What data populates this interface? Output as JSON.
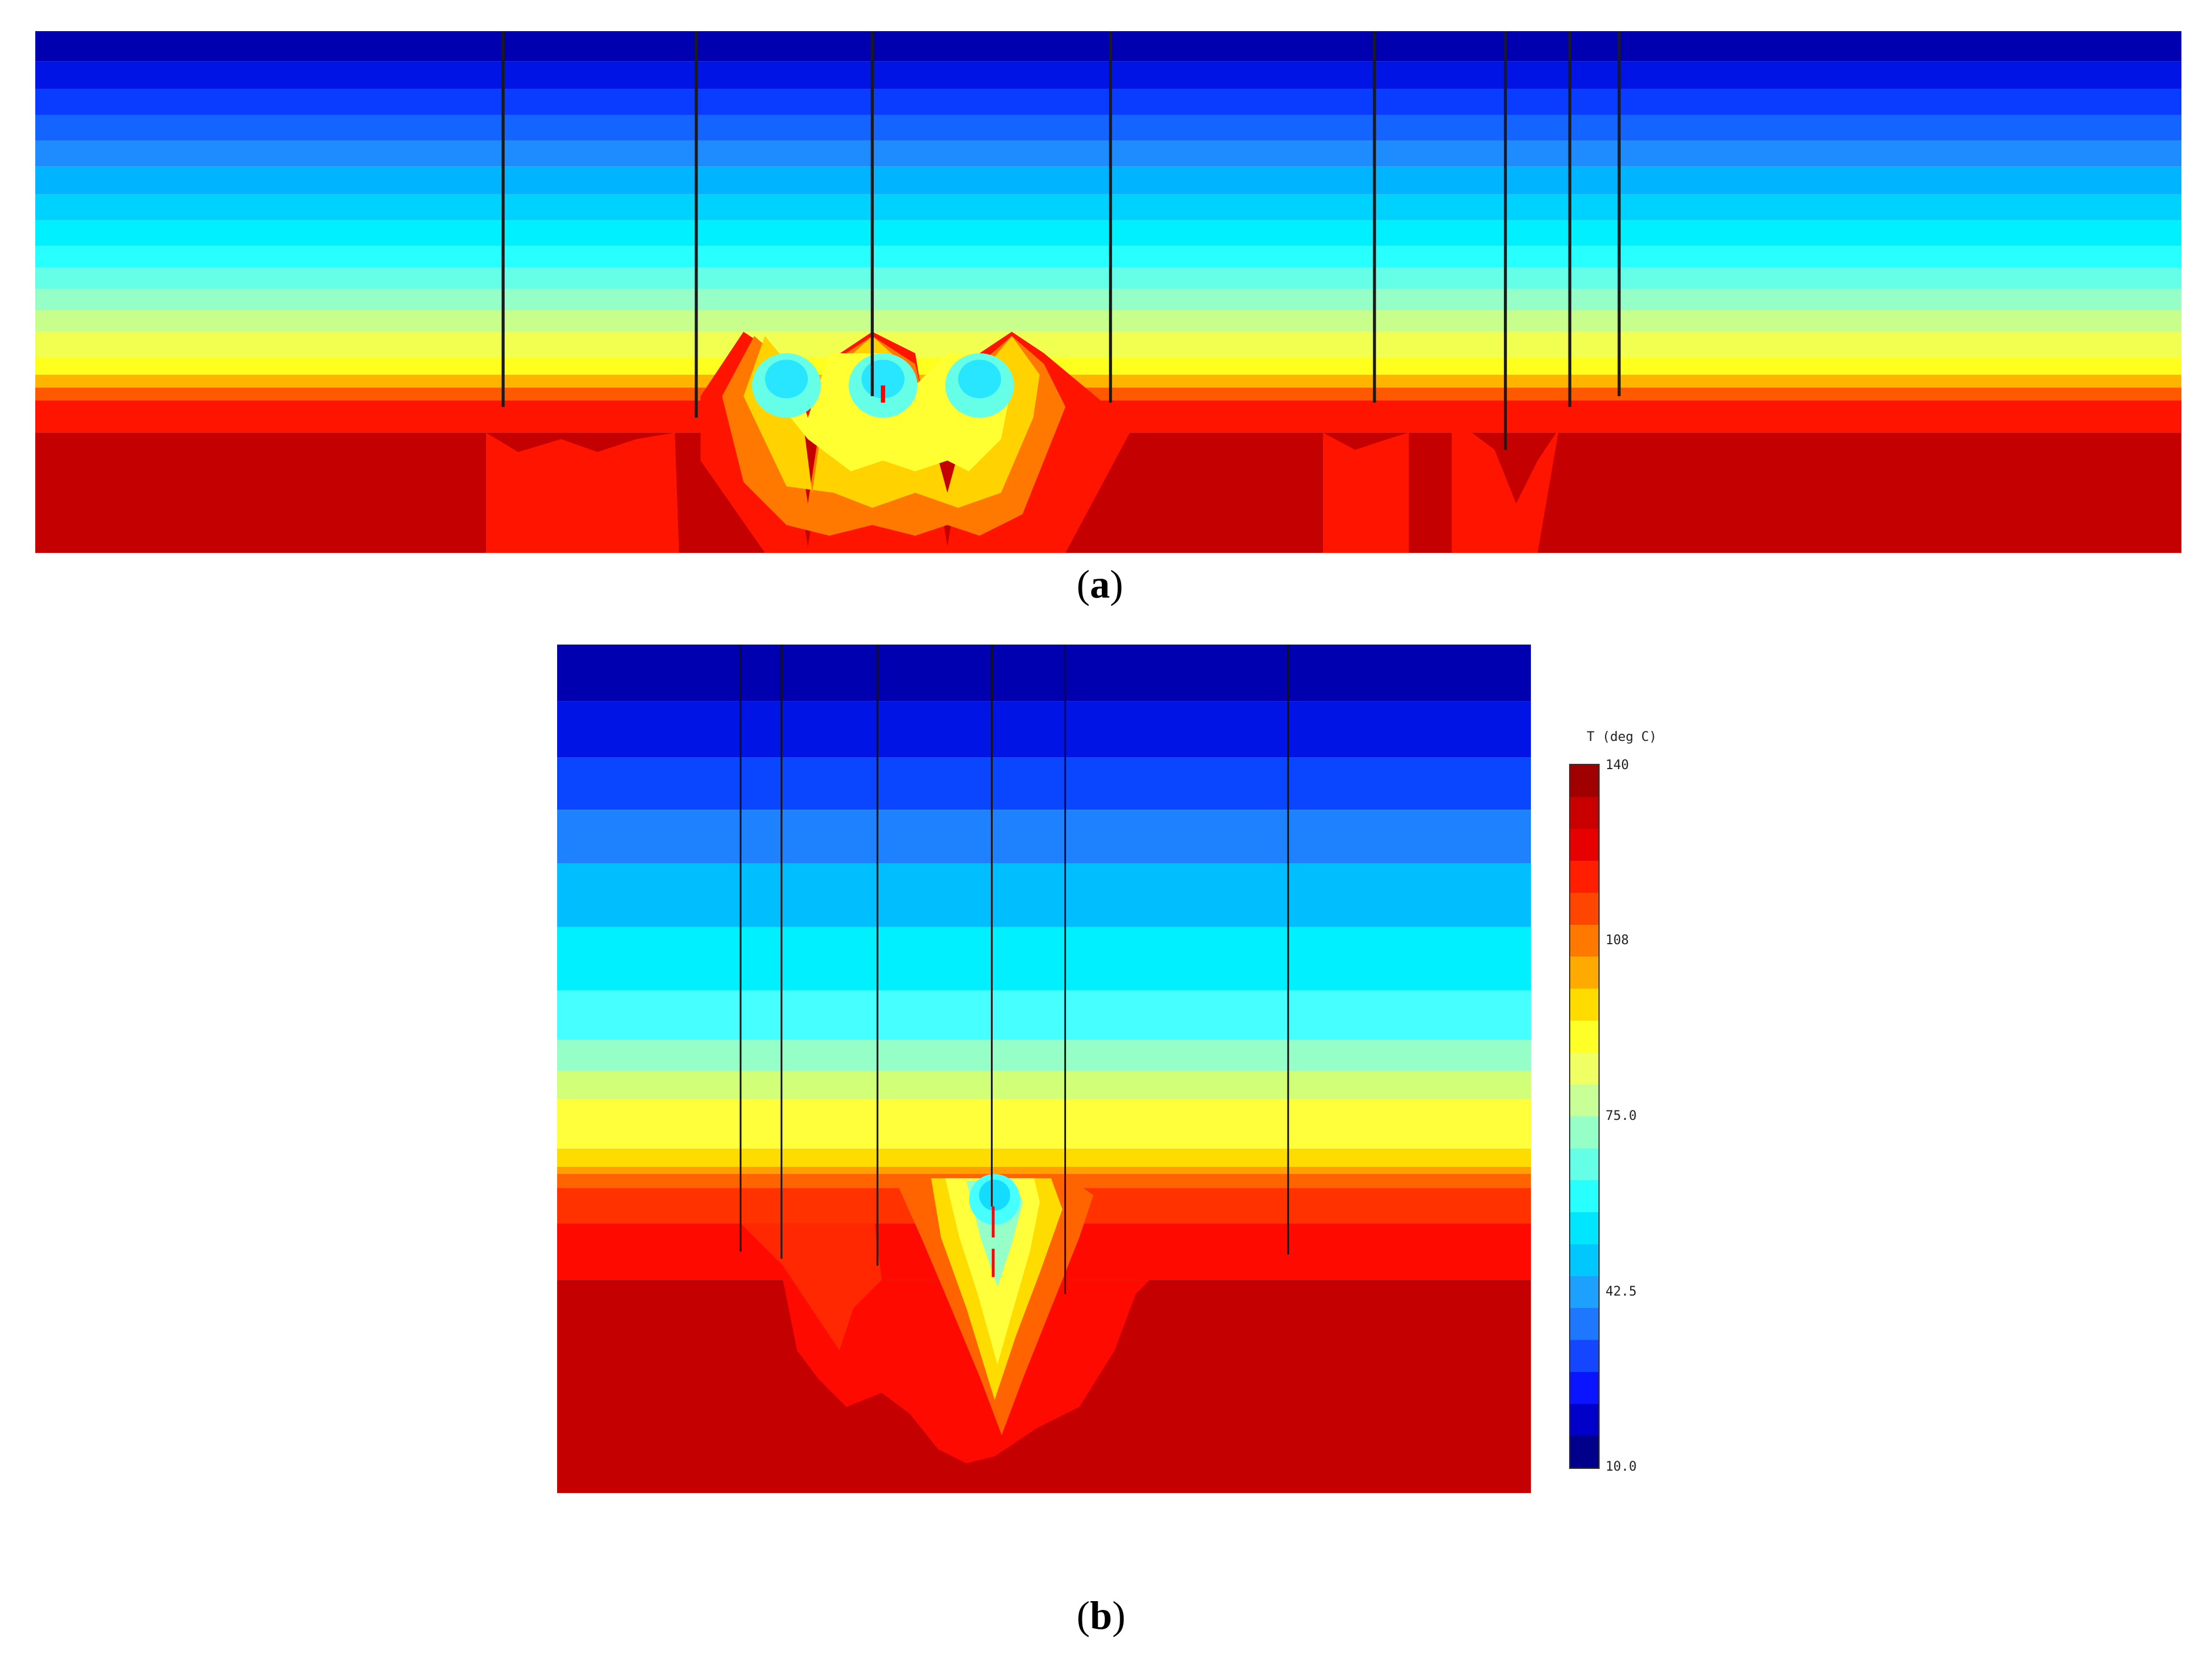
{
  "captions": {
    "a": "a",
    "b": "b"
  },
  "colorbar": {
    "title": "T (deg C)",
    "min": 10.0,
    "max": 140,
    "ticks": [
      "140",
      "108",
      "75.0",
      "42.5",
      "10.0"
    ],
    "colors": [
      "#00008b",
      "#0000c8",
      "#0a14ff",
      "#1446ff",
      "#1e78ff",
      "#1ea0ff",
      "#00c8ff",
      "#00e6ff",
      "#28ffff",
      "#64ffe6",
      "#96ffc8",
      "#c8ff96",
      "#f0ff64",
      "#ffff28",
      "#ffdc00",
      "#ffaa00",
      "#ff7800",
      "#ff4600",
      "#ff1e00",
      "#e60000",
      "#c80000",
      "#a00000"
    ]
  },
  "panel_a": {
    "wells_count": 8,
    "hot_color": "#c40000",
    "cold_color": "#0000a0"
  },
  "panel_b": {
    "wells_count": 6,
    "hot_color": "#c40000",
    "cold_color": "#0000a0"
  }
}
